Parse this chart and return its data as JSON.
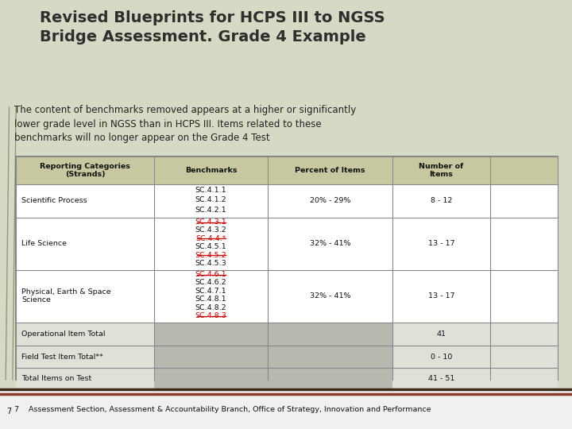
{
  "title": "Revised Blueprints for HCPS III to NGSS\nBridge Assessment. Grade 4 Example",
  "subtitle": "The content of benchmarks removed appears at a higher or significantly\nlower grade level in NGSS than in HCPS III. Items related to these\nbenchmarks will no longer appear on the Grade 4 Test",
  "bg_color": "#d6d9c4",
  "title_color": "#2e2e2e",
  "footer_text": "7    Assessment Section, Assessment & Accountability Branch, Office of Strategy, Innovation and Performance",
  "footer_bg": "#f0f0ee",
  "footer_line_color": "#8b3a2a",
  "table": {
    "col_headers": [
      "Reporting Categories\n(Strands)",
      "Benchmarks",
      "Percent of Items",
      "Number of\nItems"
    ],
    "header_bg": "#c8c8a0",
    "rows": [
      {
        "category": "Scientific Process",
        "benchmarks": [
          [
            "SC.4.1.1",
            false
          ],
          [
            "SC.4.1.2",
            false
          ],
          [
            "SC.4.2.1",
            false
          ]
        ],
        "percent": "20% - 29%",
        "number": "8 - 12",
        "gray_mid": false
      },
      {
        "category": "Life Science",
        "benchmarks": [
          [
            "SC.4.3.1",
            true
          ],
          [
            "SC.4.3.2",
            false
          ],
          [
            "SC.4.4.*",
            true
          ],
          [
            "SC.4.5.1",
            false
          ],
          [
            "SC.4.5.2",
            true
          ],
          [
            "SC.4.5.3",
            false
          ]
        ],
        "percent": "32% - 41%",
        "number": "13 - 17",
        "gray_mid": false
      },
      {
        "category": "Physical, Earth & Space\nScience",
        "benchmarks": [
          [
            "SC.4.6.1",
            true
          ],
          [
            "SC.4.6.2",
            false
          ],
          [
            "SC.4.7.1",
            false
          ],
          [
            "SC.4.8.1",
            false
          ],
          [
            "SC.4.8.2",
            false
          ],
          [
            "SC.4.8.3",
            true
          ]
        ],
        "percent": "32% - 41%",
        "number": "13 - 17",
        "gray_mid": false
      },
      {
        "category": "Operational Item Total",
        "benchmarks": [],
        "percent": "",
        "number": "41",
        "gray_mid": true
      },
      {
        "category": "Field Test Item Total**",
        "benchmarks": [],
        "percent": "",
        "number": "0 - 10",
        "gray_mid": true
      },
      {
        "category": "Total Items on Test",
        "benchmarks": [],
        "percent": "",
        "number": "41 - 51",
        "gray_mid": true
      }
    ]
  }
}
